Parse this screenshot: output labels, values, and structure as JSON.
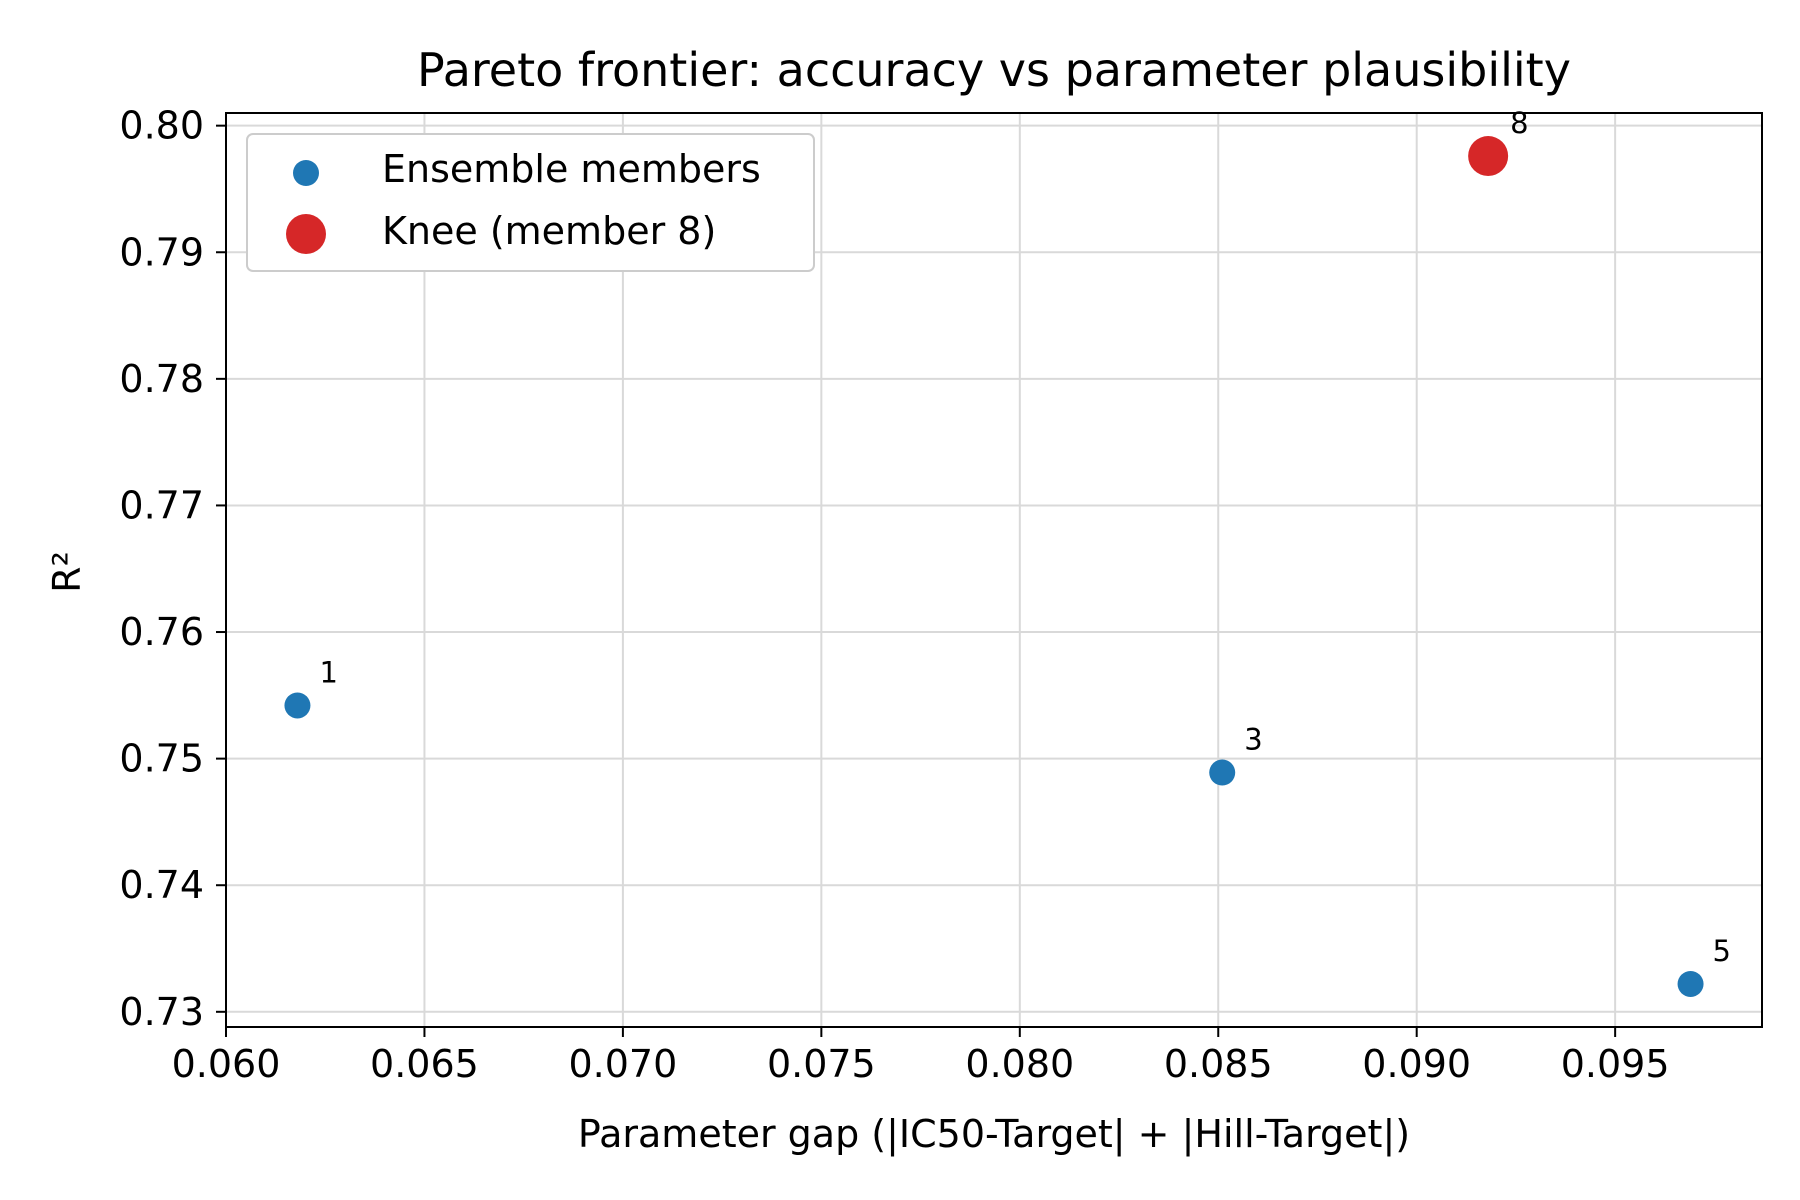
{
  "chart_data": {
    "type": "scatter",
    "title": "Pareto frontier: accuracy vs parameter plausibility",
    "xlabel": "Parameter gap (|IC50-Target| + |Hill-Target|)",
    "ylabel": "R²",
    "xlim": [
      0.06,
      0.0987
    ],
    "ylim": [
      0.7288,
      0.801
    ],
    "xticks": [
      "0.060",
      "0.065",
      "0.070",
      "0.075",
      "0.080",
      "0.085",
      "0.090",
      "0.095"
    ],
    "yticks": [
      "0.73",
      "0.74",
      "0.75",
      "0.76",
      "0.77",
      "0.78",
      "0.79",
      "0.80"
    ],
    "grid": true,
    "legend_position": "upper-left",
    "series": [
      {
        "name": "Ensemble members",
        "color": "#1f77b4",
        "points": [
          {
            "x": 0.0618,
            "y": 0.7542,
            "label": "1"
          },
          {
            "x": 0.0851,
            "y": 0.7489,
            "label": "3"
          },
          {
            "x": 0.0969,
            "y": 0.7322,
            "label": "5"
          }
        ]
      },
      {
        "name": "Knee (member 8)",
        "color": "#d62728",
        "points": [
          {
            "x": 0.0918,
            "y": 0.7976,
            "label": "8"
          }
        ]
      }
    ]
  }
}
